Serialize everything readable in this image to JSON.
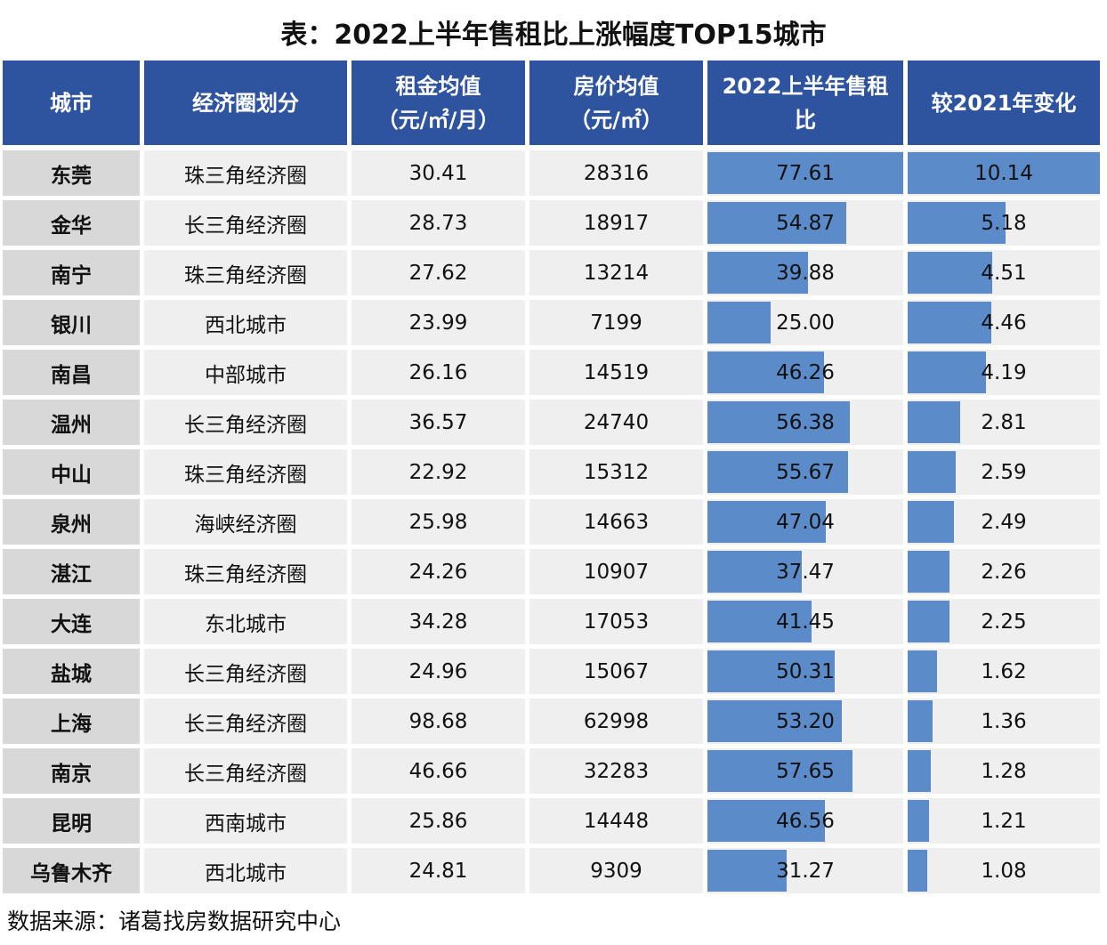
{
  "title": "表：2022上半年售租比上涨幅度TOP15城市",
  "source": "数据来源：诸葛找房数据研究中心",
  "colors": {
    "header": "#2e54a0",
    "bar": "#5b8bc9",
    "cell": "#efeff0",
    "city_cell": "#d8d8d8"
  },
  "chart_data": {
    "type": "table",
    "title": "表：2022上半年售租比上涨幅度TOP15城市",
    "columns": [
      "城市",
      "经济圈划分",
      "租金均值（元/㎡/月）",
      "房价均值（元/㎡）",
      "2022上半年售租比",
      "较2021年变化"
    ],
    "data_bar_columns": [
      "2022上半年售租比",
      "较2021年变化"
    ],
    "rows": [
      [
        "东莞",
        "珠三角经济圈",
        "30.41",
        "28316",
        "77.61",
        "10.14"
      ],
      [
        "金华",
        "长三角经济圈",
        "28.73",
        "18917",
        "54.87",
        "5.18"
      ],
      [
        "南宁",
        "珠三角经济圈",
        "27.62",
        "13214",
        "39.88",
        "4.51"
      ],
      [
        "银川",
        "西北城市",
        "23.99",
        "7199",
        "25.00",
        "4.46"
      ],
      [
        "南昌",
        "中部城市",
        "26.16",
        "14519",
        "46.26",
        "4.19"
      ],
      [
        "温州",
        "长三角经济圈",
        "36.57",
        "24740",
        "56.38",
        "2.81"
      ],
      [
        "中山",
        "珠三角经济圈",
        "22.92",
        "15312",
        "55.67",
        "2.59"
      ],
      [
        "泉州",
        "海峡经济圈",
        "25.98",
        "14663",
        "47.04",
        "2.49"
      ],
      [
        "湛江",
        "珠三角经济圈",
        "24.26",
        "10907",
        "37.47",
        "2.26"
      ],
      [
        "大连",
        "东北城市",
        "34.28",
        "17053",
        "41.45",
        "2.25"
      ],
      [
        "盐城",
        "长三角经济圈",
        "24.96",
        "15067",
        "50.31",
        "1.62"
      ],
      [
        "上海",
        "长三角经济圈",
        "98.68",
        "62998",
        "53.20",
        "1.36"
      ],
      [
        "南京",
        "长三角经济圈",
        "46.66",
        "32283",
        "57.65",
        "1.28"
      ],
      [
        "昆明",
        "西南城市",
        "25.86",
        "14448",
        "46.56",
        "1.21"
      ],
      [
        "乌鲁木齐",
        "西北城市",
        "24.81",
        "9309",
        "31.27",
        "1.08"
      ]
    ]
  }
}
